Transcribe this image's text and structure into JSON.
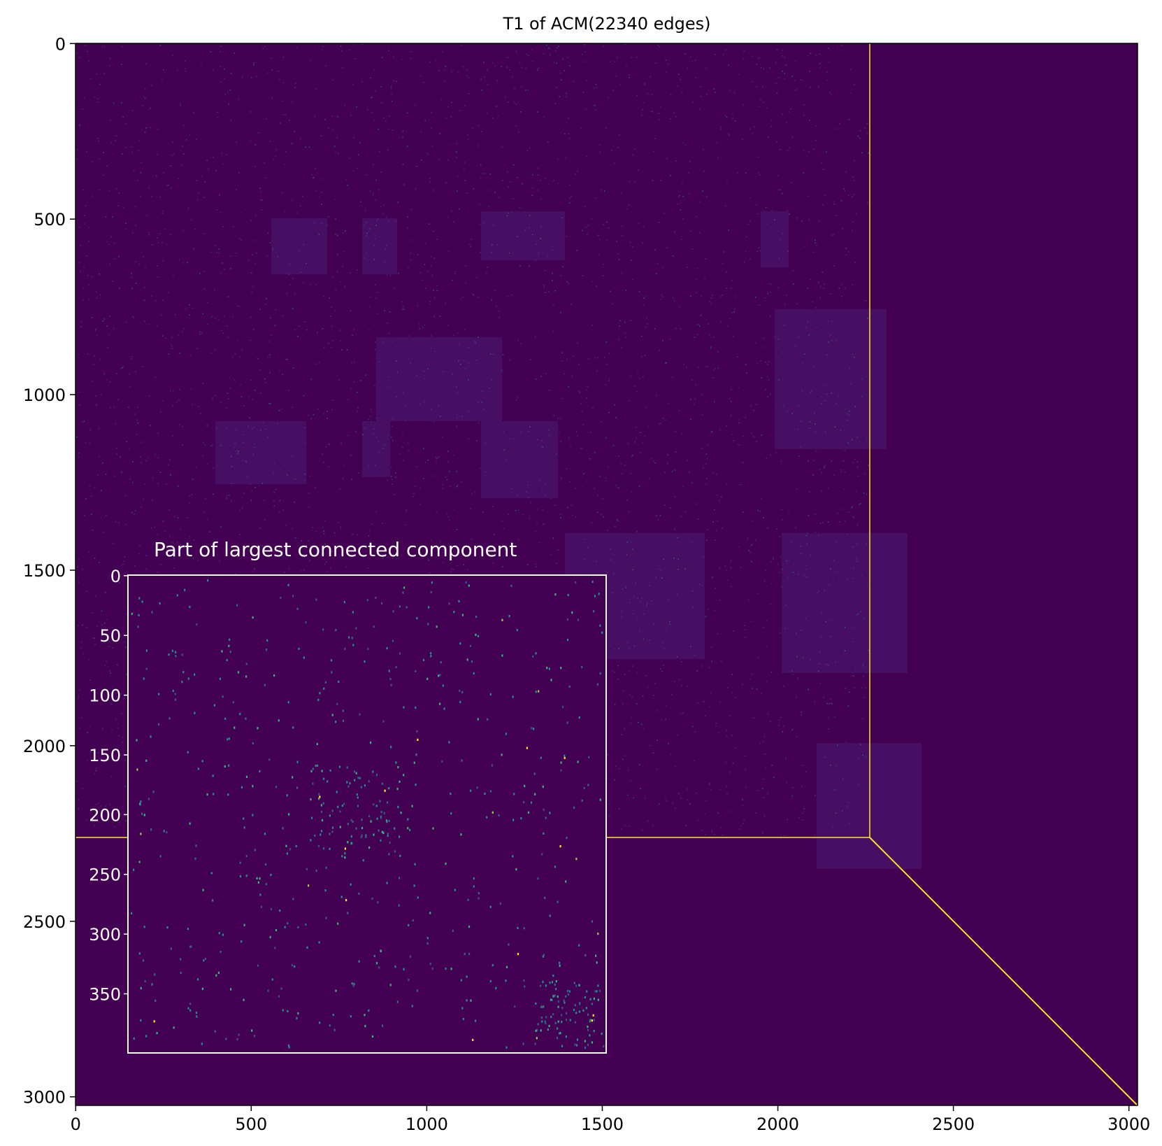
{
  "chart_data": [
    {
      "type": "image",
      "title": "T1 of ACM(22340 edges)",
      "xlim": [
        -0.5,
        3024.5
      ],
      "ylim": [
        3024.5,
        -0.5
      ],
      "xticks": [
        0,
        500,
        1000,
        1500,
        2000,
        2500,
        3000
      ],
      "yticks": [
        0,
        500,
        1000,
        1500,
        2000,
        2500,
        3000
      ],
      "colors": {
        "low": "#440154",
        "high": "#fde725"
      }
    },
    {
      "type": "image",
      "title": "Part of largest connected component",
      "ylim": [
        399.5,
        -0.5
      ],
      "yticks": [
        0,
        50,
        100,
        150,
        200,
        250,
        300,
        350
      ],
      "colors": {
        "low": "#440154",
        "high": "#fde725"
      }
    }
  ]
}
